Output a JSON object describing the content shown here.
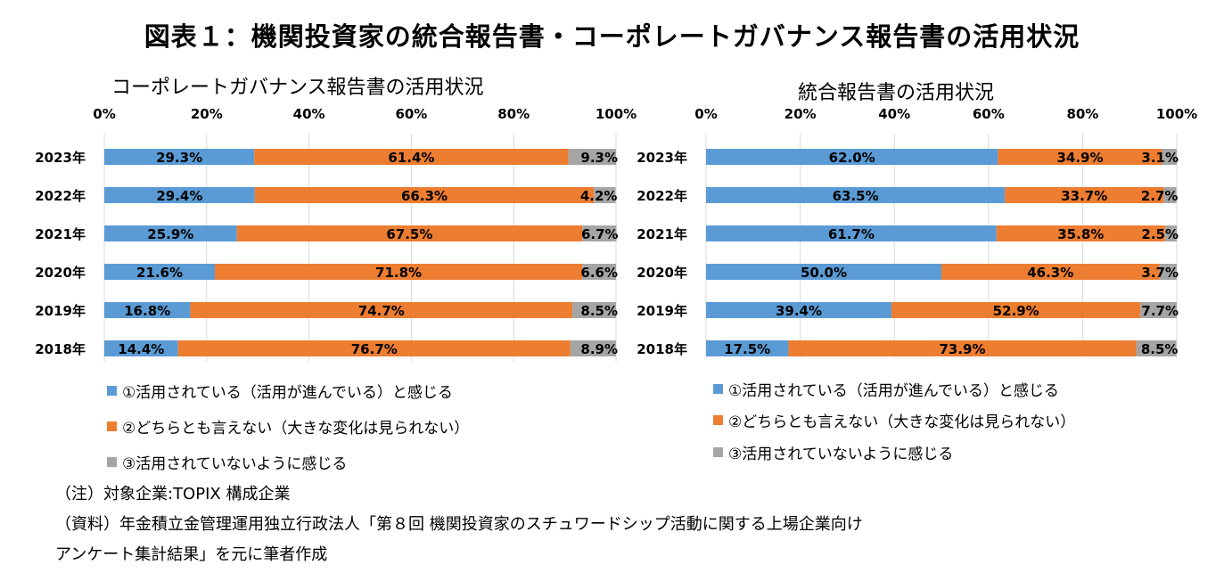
{
  "title": "図表１：機関投資家の統合報告書・コーポレートガバナンス報告書の活用状況",
  "colors": {
    "s1": "#5b9bd5",
    "s2": "#ed7d31",
    "s3": "#a5a5a5"
  },
  "legend_labels": [
    "①活用されている（活用が進んでいる）と感じる",
    "②どちらとも言えない（大きな変化は見られない）",
    "③活用されていないように感じる"
  ],
  "notes": [
    "（注）対象企業:TOPIX 構成企業",
    "（資料）年金積立金管理運用独立行政法人「第８回 機関投資家のスチュワードシップ活動に関する上場企業向け",
    " アンケート集計結果」を元に筆者作成"
  ],
  "chart_data": [
    {
      "type": "bar",
      "orientation": "horizontal",
      "stacked": true,
      "title": "コーポレートガバナンス報告書の活用状況",
      "xlim": [
        0,
        100
      ],
      "x_ticks": [
        "0%",
        "20%",
        "40%",
        "60%",
        "80%",
        "100%"
      ],
      "grid": true,
      "categories": [
        "2023年",
        "2022年",
        "2021年",
        "2020年",
        "2019年",
        "2018年"
      ],
      "series": [
        {
          "name": "①活用されている（活用が進んでいる）と感じる",
          "values": [
            29.3,
            29.4,
            25.9,
            21.6,
            16.8,
            14.4
          ],
          "labels": [
            "29.3%",
            "29.4%",
            "25.9%",
            "21.6%",
            "16.8%",
            "14.4%"
          ]
        },
        {
          "name": "②どちらとも言えない（大きな変化は見られない）",
          "values": [
            61.4,
            66.3,
            67.5,
            71.8,
            74.7,
            76.7
          ],
          "labels": [
            "61.4%",
            "66.3%",
            "67.5%",
            "71.8%",
            "74.7%",
            "76.7%"
          ]
        },
        {
          "name": "③活用されていないように感じる",
          "values": [
            9.3,
            4.2,
            6.7,
            6.6,
            8.5,
            8.9
          ],
          "labels": [
            "9.3%",
            "4.2%",
            "6.7%",
            "6.6%",
            "8.5%",
            "8.9%"
          ]
        }
      ]
    },
    {
      "type": "bar",
      "orientation": "horizontal",
      "stacked": true,
      "title": "統合報告書の活用状況",
      "xlim": [
        0,
        100
      ],
      "x_ticks": [
        "0%",
        "20%",
        "40%",
        "60%",
        "80%",
        "100%"
      ],
      "grid": true,
      "categories": [
        "2023年",
        "2022年",
        "2021年",
        "2020年",
        "2019年",
        "2018年"
      ],
      "series": [
        {
          "name": "①活用されている（活用が進んでいる）と感じる",
          "values": [
            62.0,
            63.5,
            61.7,
            50.0,
            39.4,
            17.5
          ],
          "labels": [
            "62.0%",
            "63.5%",
            "61.7%",
            "50.0%",
            "39.4%",
            "17.5%"
          ]
        },
        {
          "name": "②どちらとも言えない（大きな変化は見られない）",
          "values": [
            34.9,
            33.7,
            35.8,
            46.3,
            52.9,
            73.9
          ],
          "labels": [
            "34.9%",
            "33.7%",
            "35.8%",
            "46.3%",
            "52.9%",
            "73.9%"
          ]
        },
        {
          "name": "③活用されていないように感じる",
          "values": [
            3.1,
            2.7,
            2.5,
            3.7,
            7.7,
            8.5
          ],
          "labels": [
            "3.1%",
            "2.7%",
            "2.5%",
            "3.7%",
            "7.7%",
            "8.5%"
          ]
        }
      ]
    }
  ]
}
